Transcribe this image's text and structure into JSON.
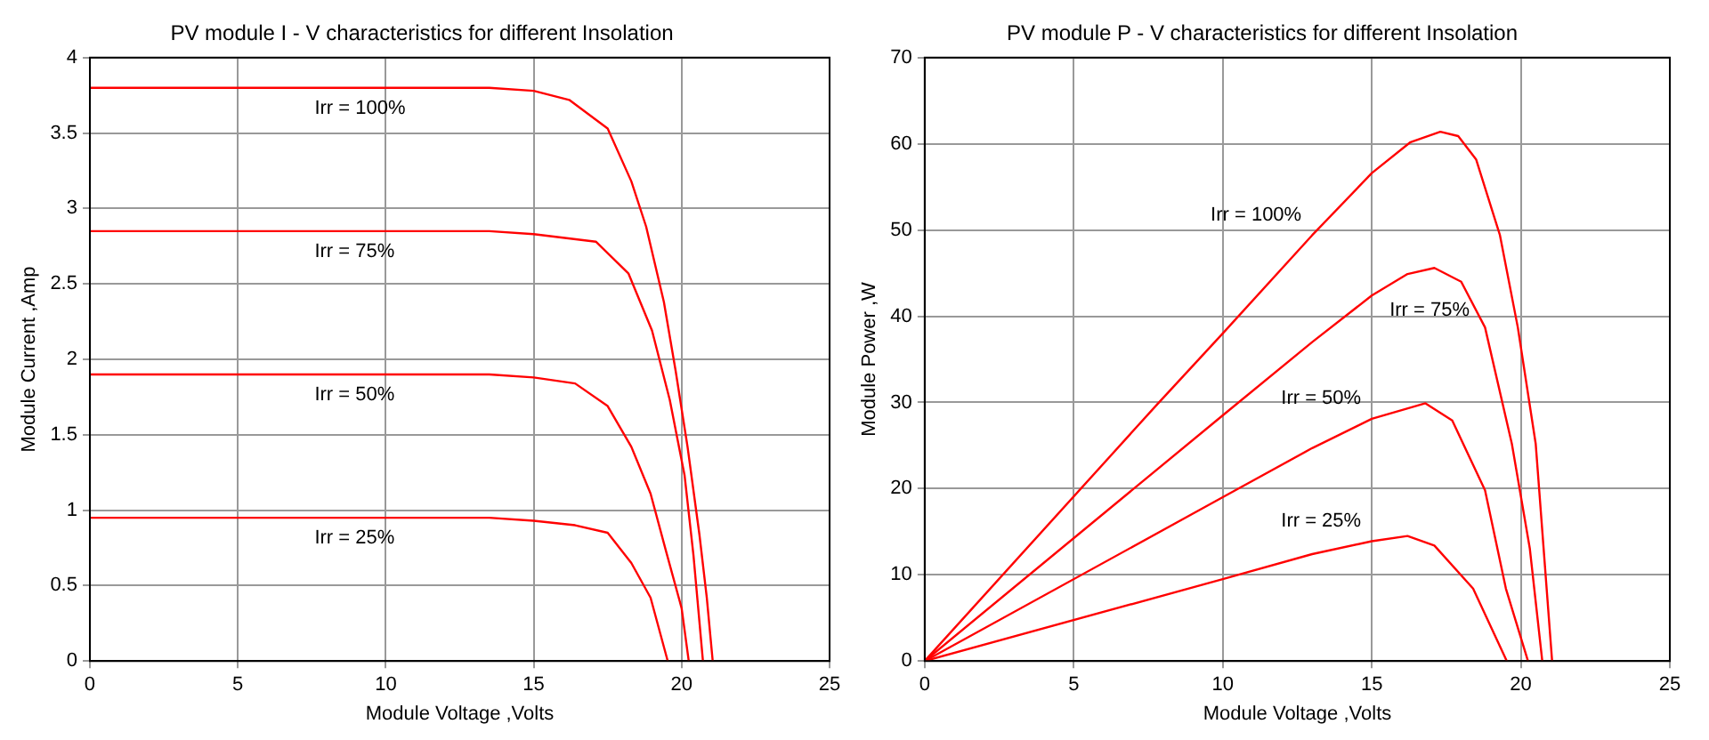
{
  "chart_data": [
    {
      "type": "line",
      "title": "PV module I - V characteristics for different Insolation",
      "xlabel": "Module Voltage ,Volts",
      "ylabel": "Module Current ,Amp",
      "xlim": [
        0,
        25
      ],
      "xticks": [
        0,
        5,
        10,
        15,
        20,
        25
      ],
      "ylim": [
        0,
        4
      ],
      "yticks": [
        0,
        0.5,
        1,
        1.5,
        2,
        2.5,
        3,
        3.5,
        4
      ],
      "grid": true,
      "legend": false,
      "marker": "none",
      "line_style": "solid",
      "series": [
        {
          "name": "Irr = 100%",
          "color": "#ff0000",
          "x": [
            0,
            5,
            10,
            13.5,
            15,
            16.2,
            17.5,
            18.3,
            18.8,
            19.4,
            19.8,
            20.2,
            20.6,
            20.85,
            21.05
          ],
          "values": [
            3.8,
            3.8,
            3.8,
            3.8,
            3.78,
            3.72,
            3.53,
            3.18,
            2.88,
            2.38,
            1.92,
            1.42,
            0.84,
            0.42,
            0
          ]
        },
        {
          "name": "Irr = 75%",
          "color": "#ff0000",
          "x": [
            0,
            5,
            10,
            13.5,
            15,
            17.1,
            18.2,
            19.0,
            19.6,
            20.1,
            20.4,
            20.72
          ],
          "values": [
            2.85,
            2.85,
            2.85,
            2.85,
            2.83,
            2.78,
            2.57,
            2.19,
            1.73,
            1.23,
            0.7,
            0
          ]
        },
        {
          "name": "Irr = 50%",
          "color": "#ff0000",
          "x": [
            0,
            5,
            10,
            13.5,
            15,
            16.4,
            17.5,
            18.3,
            18.95,
            19.47,
            20.0,
            20.24
          ],
          "values": [
            1.9,
            1.9,
            1.9,
            1.9,
            1.88,
            1.84,
            1.69,
            1.42,
            1.11,
            0.73,
            0.35,
            0
          ]
        },
        {
          "name": "Irr = 25%",
          "color": "#ff0000",
          "x": [
            0,
            5,
            10,
            13.5,
            15,
            16.4,
            17.5,
            18.3,
            18.95,
            19.53
          ],
          "values": [
            0.95,
            0.95,
            0.95,
            0.95,
            0.93,
            0.9,
            0.85,
            0.65,
            0.42,
            0
          ]
        }
      ]
    },
    {
      "type": "line",
      "title": "PV module P - V characteristics for different Insolation",
      "xlabel": "Module Voltage ,Volts",
      "ylabel": "Module Power ,W",
      "xlim": [
        0,
        25
      ],
      "xticks": [
        0,
        5,
        10,
        15,
        20,
        25
      ],
      "ylim": [
        0,
        70
      ],
      "yticks": [
        0,
        10,
        20,
        30,
        40,
        50,
        60,
        70
      ],
      "grid": true,
      "legend": false,
      "marker": "none",
      "line_style": "solid",
      "series": [
        {
          "name": "Irr = 100%",
          "color": "#ff0000",
          "x": [
            0,
            7.78,
            10,
            13,
            15,
            16.3,
            17.3,
            17.9,
            18.5,
            19.3,
            19.9,
            20.5,
            21.05
          ],
          "values": [
            0,
            29.7,
            38.0,
            49.4,
            56.6,
            60.2,
            61.4,
            60.9,
            58.2,
            49.4,
            38.7,
            25.2,
            0
          ]
        },
        {
          "name": "Irr = 75%",
          "color": "#ff0000",
          "x": [
            0,
            10,
            13,
            15,
            16.2,
            17.1,
            18.0,
            18.8,
            19.7,
            20.3,
            20.72
          ],
          "values": [
            0,
            28.5,
            37.0,
            42.4,
            44.9,
            45.6,
            44.0,
            38.7,
            25.2,
            13.1,
            0
          ]
        },
        {
          "name": "Irr = 50%",
          "color": "#ff0000",
          "x": [
            0,
            10,
            13,
            15,
            16.8,
            17.7,
            18.8,
            19.5,
            20.24
          ],
          "values": [
            0,
            19.0,
            24.7,
            28.1,
            29.9,
            27.9,
            19.8,
            8.4,
            0
          ]
        },
        {
          "name": "Irr = 25%",
          "color": "#ff0000",
          "x": [
            0,
            10,
            13,
            15,
            16.2,
            17.1,
            18.4,
            19.53
          ],
          "values": [
            0,
            9.5,
            12.4,
            13.9,
            14.5,
            13.4,
            8.4,
            0
          ]
        }
      ]
    }
  ]
}
